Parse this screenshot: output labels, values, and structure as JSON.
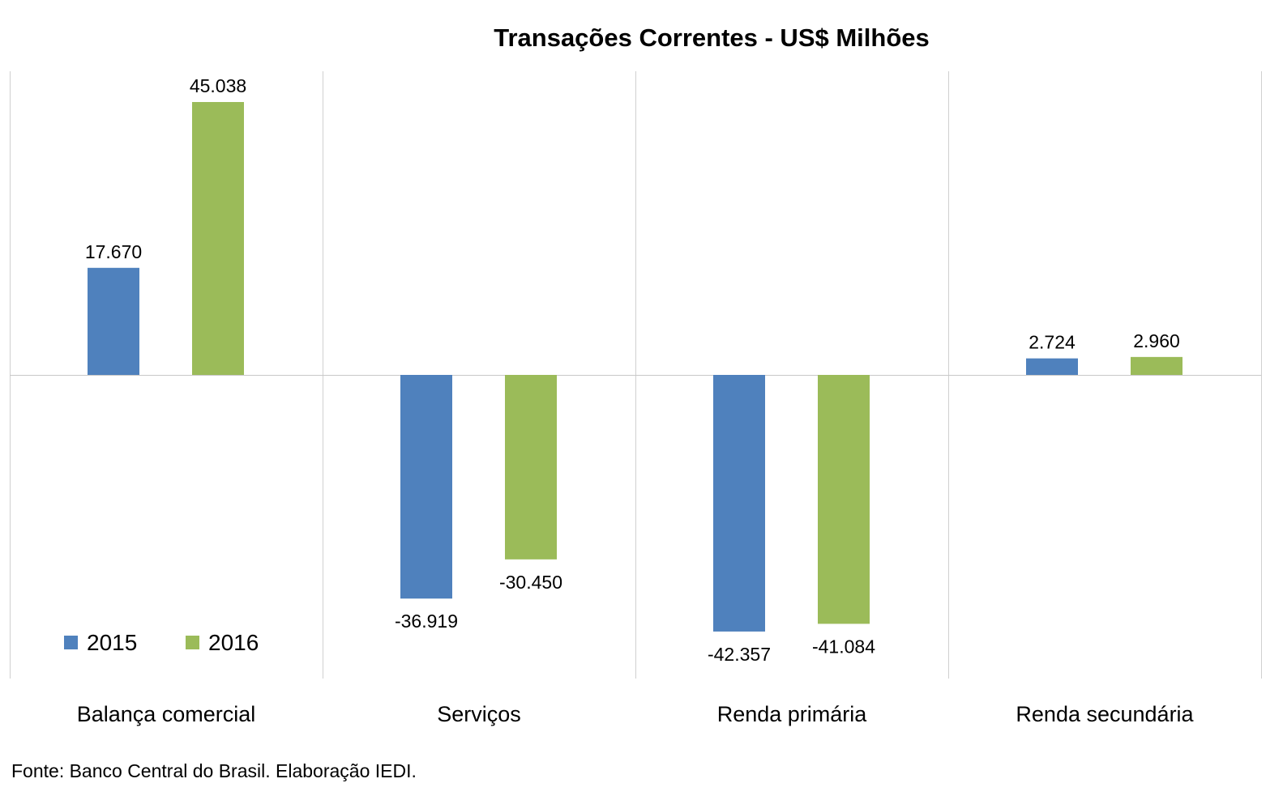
{
  "chart_data": {
    "type": "bar",
    "title": "Transações Correntes  - US$ Milhões",
    "categories": [
      "Balança comercial",
      "Serviços",
      "Renda primária",
      "Renda secundária"
    ],
    "series": [
      {
        "name": "2015",
        "color": "#4F81BD",
        "values": [
          17670,
          -36919,
          -42357,
          2724
        ],
        "labels": [
          "17.670",
          "-36.919",
          "-42.357",
          "2.724"
        ]
      },
      {
        "name": "2016",
        "color": "#9BBB59",
        "values": [
          45038,
          -30450,
          -41084,
          2960
        ],
        "labels": [
          "45.038",
          "-30.450",
          "-41.084",
          "2.960"
        ]
      }
    ],
    "grid": "vertical category separators",
    "legend_position": "bottom-left",
    "source": "Fonte: Banco Central do Brasil. Elaboração IEDI."
  }
}
